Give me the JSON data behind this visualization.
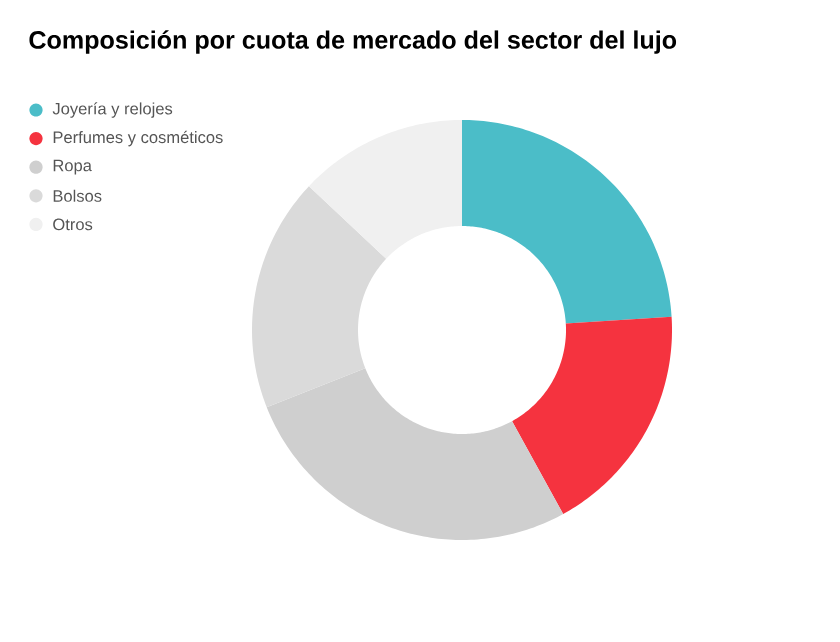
{
  "chart_data": {
    "type": "donut",
    "title": "Composición por cuota de mercado del sector del lujo",
    "categories": [
      "Joyería y relojes",
      "Perfumes y cosméticos",
      "Ropa",
      "Bolsos",
      "Otros"
    ],
    "values": [
      24,
      18,
      27,
      18,
      13
    ],
    "colors": [
      "#4bbdc8",
      "#f5333f",
      "#cfcfcf",
      "#dadada",
      "#f0f0f0"
    ],
    "legend": "top left"
  }
}
